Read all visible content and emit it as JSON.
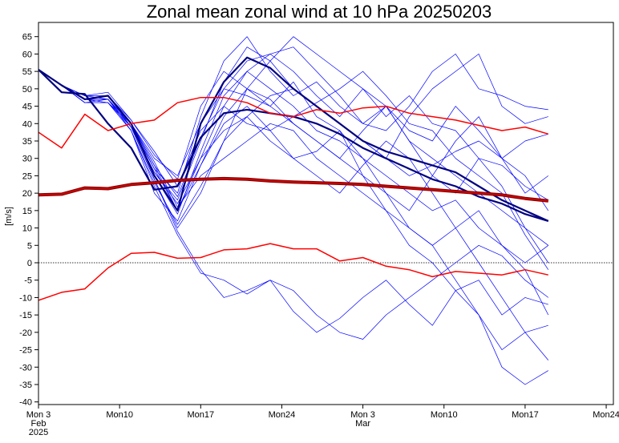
{
  "chart_data": {
    "type": "line",
    "title": "Zonal mean zonal wind at 10 hPa 20250203",
    "ylabel": "[m/s]",
    "xlabel": "",
    "ylim": [
      -40,
      67
    ],
    "xlim": [
      "2025-02-03",
      "2025-03-24"
    ],
    "grid": false,
    "zero_line": "dotted",
    "yticks": [
      65,
      60,
      55,
      50,
      45,
      40,
      35,
      30,
      25,
      20,
      15,
      10,
      5,
      0,
      -5,
      -10,
      -15,
      -20,
      -25,
      -30,
      -35,
      -40
    ],
    "xticks": [
      {
        "date": "2025-02-03",
        "label": [
          "Mon 3",
          "Feb",
          "2025"
        ]
      },
      {
        "date": "2025-02-10",
        "label": [
          "Mon10"
        ]
      },
      {
        "date": "2025-02-17",
        "label": [
          "Mon17"
        ]
      },
      {
        "date": "2025-02-24",
        "label": [
          "Mon24"
        ]
      },
      {
        "date": "2025-03-03",
        "label": [
          "Mon 3",
          "Mar"
        ]
      },
      {
        "date": "2025-03-10",
        "label": [
          "Mon10"
        ]
      },
      {
        "date": "2025-03-17",
        "label": [
          "Mon17"
        ]
      },
      {
        "date": "2025-03-24",
        "label": [
          "Mon24"
        ]
      }
    ],
    "x": [
      "2025-02-03",
      "2025-02-05",
      "2025-02-07",
      "2025-02-09",
      "2025-02-11",
      "2025-02-13",
      "2025-02-15",
      "2025-02-17",
      "2025-02-19",
      "2025-02-21",
      "2025-02-23",
      "2025-02-25",
      "2025-02-27",
      "2025-03-01",
      "2025-03-03",
      "2025-03-05",
      "2025-03-07",
      "2025-03-09",
      "2025-03-11",
      "2025-03-13",
      "2025-03-15",
      "2025-03-17",
      "2025-03-19"
    ],
    "colors": {
      "members": "#0000ff",
      "ensemble_dark": "#000080",
      "climatology": "#ff0000",
      "climatology_mean": "#cc0000"
    },
    "members": [
      [
        55.5,
        51,
        47,
        46,
        40,
        28,
        15,
        30,
        45,
        55,
        60,
        62,
        55,
        48,
        40,
        45,
        35,
        30,
        25,
        20,
        15,
        10,
        5
      ],
      [
        55.5,
        51,
        48,
        47,
        39,
        24,
        10,
        20,
        35,
        50,
        58,
        65,
        60,
        55,
        50,
        42,
        48,
        40,
        38,
        30,
        28,
        22,
        18
      ],
      [
        55.5,
        51,
        46,
        46,
        38,
        22,
        8,
        -3,
        -5,
        -9,
        -5,
        -8,
        -15,
        -20,
        -22,
        -15,
        -10,
        -5,
        0,
        5,
        2,
        -5,
        -10
      ],
      [
        55.5,
        51,
        47,
        48,
        40,
        30,
        25,
        40,
        50,
        48,
        45,
        52,
        42,
        38,
        30,
        25,
        20,
        15,
        18,
        10,
        5,
        -2,
        -15
      ],
      [
        55.5,
        51,
        47,
        47,
        39,
        26,
        18,
        35,
        52,
        62,
        58,
        50,
        45,
        40,
        35,
        30,
        42,
        50,
        55,
        60,
        45,
        40,
        42
      ],
      [
        55.5,
        51,
        48,
        48,
        41,
        32,
        22,
        38,
        45,
        40,
        38,
        42,
        46,
        50,
        55,
        48,
        40,
        38,
        30,
        25,
        20,
        8,
        -2
      ],
      [
        55.5,
        51,
        46,
        47,
        38,
        20,
        12,
        28,
        40,
        45,
        38,
        30,
        25,
        20,
        28,
        35,
        30,
        20,
        10,
        0,
        -10,
        -20,
        -28
      ],
      [
        55.5,
        51,
        47,
        46,
        40,
        25,
        14,
        32,
        48,
        55,
        50,
        45,
        38,
        35,
        30,
        20,
        10,
        5,
        -5,
        -15,
        -30,
        -35,
        -31
      ],
      [
        55.5,
        51,
        47,
        48,
        39,
        27,
        20,
        42,
        58,
        65,
        55,
        48,
        52,
        45,
        40,
        38,
        45,
        55,
        60,
        50,
        48,
        45,
        44
      ],
      [
        55.5,
        51,
        47,
        47,
        40,
        29,
        16,
        25,
        30,
        35,
        40,
        38,
        30,
        25,
        20,
        15,
        5,
        0,
        -8,
        -15,
        -25,
        -20,
        -18
      ],
      [
        55.5,
        51,
        46,
        46,
        38,
        23,
        11,
        22,
        35,
        42,
        48,
        50,
        45,
        40,
        35,
        30,
        25,
        28,
        32,
        35,
        30,
        35,
        37
      ],
      [
        55.5,
        51,
        48,
        49,
        41,
        31,
        24,
        45,
        55,
        50,
        47,
        40,
        35,
        30,
        25,
        20,
        15,
        25,
        35,
        42,
        30,
        20,
        25
      ],
      [
        55.5,
        51,
        47,
        47,
        39,
        26,
        17,
        30,
        38,
        42,
        35,
        30,
        32,
        38,
        25,
        15,
        10,
        5,
        10,
        15,
        5,
        0,
        5
      ],
      [
        55.5,
        51,
        47,
        48,
        40,
        28,
        19,
        36,
        50,
        58,
        60,
        55,
        48,
        42,
        50,
        45,
        38,
        35,
        45,
        38,
        30,
        25,
        15
      ],
      [
        55.5,
        51,
        46,
        46,
        39,
        24,
        9,
        -2,
        -10,
        -8,
        -5,
        -14,
        -20,
        -16,
        -10,
        -5,
        -12,
        -18,
        -8,
        -5,
        -15,
        -10,
        -12
      ],
      [
        55.5,
        51,
        47,
        47,
        40,
        27,
        15,
        28,
        42,
        50,
        45,
        40,
        35,
        30,
        38,
        45,
        35,
        25,
        20,
        30,
        22,
        10,
        0
      ]
    ],
    "ensemble_dark": [
      [
        55.5,
        49,
        48.5,
        40,
        33,
        21,
        22,
        36,
        43,
        44,
        43,
        42,
        40,
        37,
        33,
        30,
        27,
        24,
        22,
        19,
        17,
        14,
        12
      ],
      [
        55.5,
        51,
        47,
        48,
        40,
        25,
        15,
        40,
        52,
        59,
        56,
        50,
        45,
        40,
        35,
        32,
        30,
        28,
        26,
        22,
        18,
        15,
        12
      ]
    ],
    "climatology_upper": [
      37.5,
      33,
      42.7,
      38,
      40,
      41,
      46,
      47.5,
      47.5,
      46,
      43,
      42,
      44,
      43,
      44.5,
      45,
      43,
      42,
      41,
      39.5,
      38,
      39,
      37
    ],
    "climatology_mean": [
      19.5,
      19.7,
      21.5,
      21.3,
      22.5,
      23,
      23.7,
      24,
      24.2,
      24,
      23.5,
      23.2,
      23,
      22.8,
      22.5,
      22,
      21.5,
      21,
      20.5,
      20,
      19.5,
      18.5,
      17.8
    ],
    "climatology_lower": [
      -10.8,
      -8.5,
      -7.5,
      -1.5,
      2.7,
      3,
      1.3,
      1.5,
      3.7,
      4,
      5.5,
      4,
      4,
      0.5,
      1.5,
      -1,
      -2,
      -4,
      -2.5,
      -3,
      -3.5,
      -2,
      -3.5
    ]
  }
}
